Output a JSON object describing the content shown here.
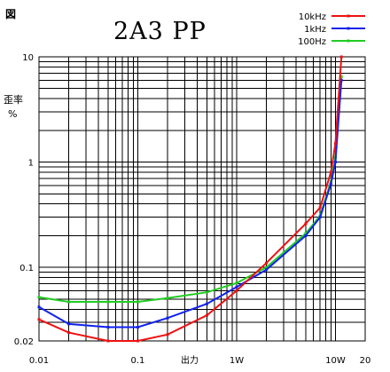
{
  "figure_label": "図",
  "chart_data": {
    "type": "line",
    "title": "2A3  PP",
    "xlabel": "出力",
    "ylabel_line1": "歪率",
    "ylabel_line2": "%",
    "x_scale": "log",
    "y_scale": "log",
    "xlim": [
      0.01,
      20
    ],
    "ylim": [
      0.02,
      10
    ],
    "grid": true,
    "legend_position": "top-right",
    "x_tick_labels": [
      {
        "value": 0.01,
        "label": "0.01"
      },
      {
        "value": 0.1,
        "label": "0.1"
      },
      {
        "value": 1,
        "label": "1W"
      },
      {
        "value": 10,
        "label": "10W"
      },
      {
        "value": 20,
        "label": "20"
      }
    ],
    "y_tick_labels": [
      {
        "value": 10,
        "label": "10"
      },
      {
        "value": 1,
        "label": "1"
      },
      {
        "value": 0.1,
        "label": "0.1"
      },
      {
        "value": 0.02,
        "label": "0.02"
      }
    ],
    "series": [
      {
        "name": "10kHz",
        "color": "#ee1111",
        "x": [
          0.01,
          0.02,
          0.05,
          0.1,
          0.2,
          0.5,
          1,
          2,
          5,
          7,
          9,
          10,
          11.5
        ],
        "y": [
          0.032,
          0.024,
          0.02,
          0.02,
          0.023,
          0.035,
          0.06,
          0.11,
          0.26,
          0.37,
          0.8,
          1.5,
          10
        ]
      },
      {
        "name": "1kHz",
        "color": "#1122ee",
        "x": [
          0.01,
          0.02,
          0.05,
          0.1,
          0.2,
          0.5,
          1,
          2,
          5,
          7,
          9,
          10,
          11.5
        ],
        "y": [
          0.042,
          0.029,
          0.027,
          0.027,
          0.033,
          0.045,
          0.065,
          0.095,
          0.2,
          0.3,
          0.62,
          1.0,
          6.0
        ]
      },
      {
        "name": "100Hz",
        "color": "#22cc22",
        "x": [
          0.01,
          0.02,
          0.05,
          0.1,
          0.2,
          0.5,
          1,
          2,
          5,
          7,
          9,
          10,
          11.5
        ],
        "y": [
          0.052,
          0.047,
          0.047,
          0.047,
          0.051,
          0.058,
          0.071,
          0.1,
          0.21,
          0.31,
          0.65,
          1.1,
          6.5
        ]
      }
    ]
  }
}
